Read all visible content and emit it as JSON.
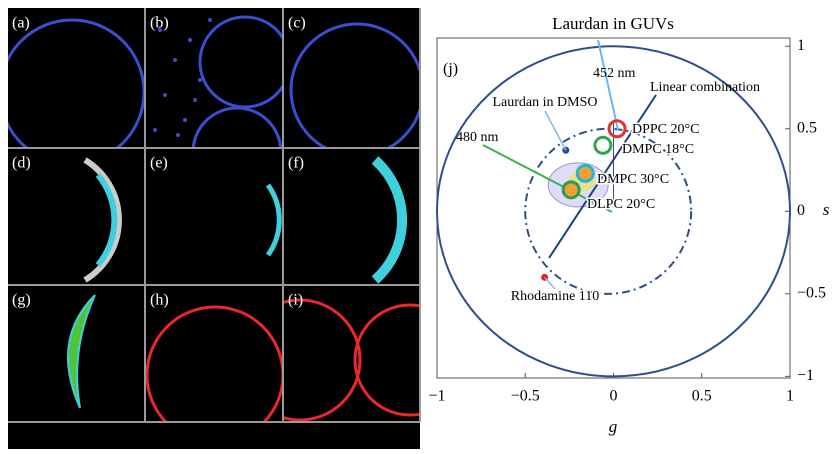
{
  "panels": [
    "(a)",
    "(b)",
    "(c)",
    "(d)",
    "(e)",
    "(f)",
    "(g)",
    "(h)",
    "(i)"
  ],
  "chart_data": {
    "type": "scatter",
    "title": "Laurdan in GUVs",
    "panel_label": "(j)",
    "x_label": "g",
    "y_label": "s",
    "xlim": [
      -1,
      1
    ],
    "ylim": [
      -1.01,
      1.05
    ],
    "xticks": [
      {
        "value": -1,
        "label": "−1"
      },
      {
        "value": -0.5,
        "label": "−0.5"
      },
      0,
      0.5,
      1
    ],
    "yticks": [
      {
        "value": -1,
        "label": "−1"
      },
      {
        "value": -0.5,
        "label": "−0.5"
      },
      0,
      0.5,
      1
    ],
    "points": [
      {
        "label": "DPPC 20°C",
        "x": 0.02,
        "y": 0.5,
        "color": "#e53030"
      },
      {
        "label": "DMPC 18°C",
        "x": -0.06,
        "y": 0.4,
        "color": "#2aa84a"
      },
      {
        "label": "DMPC 30°C",
        "x": -0.16,
        "y": 0.23,
        "color": "#27b3d6"
      },
      {
        "label": "DLPC 20°C",
        "x": -0.24,
        "y": 0.13,
        "color": "#2e9a5a"
      },
      {
        "label": "Laurdan in DMSO",
        "x": -0.27,
        "y": 0.37,
        "color": "#1f4f9a"
      },
      {
        "label": "Rhodamine 110",
        "x": -0.39,
        "y": -0.4,
        "color": "#e02020"
      }
    ],
    "annotations": [
      "452 nm",
      "Linear combination",
      "480 nm"
    ]
  }
}
